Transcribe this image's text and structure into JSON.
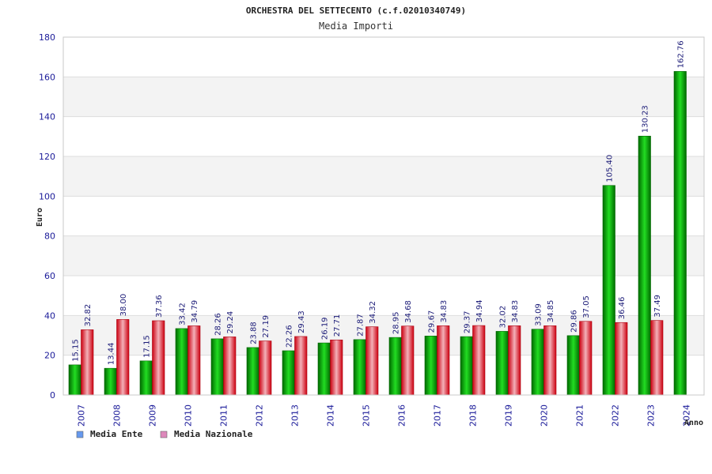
{
  "chart_data": {
    "type": "bar",
    "title": "ORCHESTRA DEL SETTECENTO (c.f.02010340749)",
    "subtitle": "Media Importi",
    "xlabel": "Anno",
    "ylabel": "Euro",
    "ylim": [
      0,
      180
    ],
    "yticks": [
      "0",
      "20",
      "40",
      "60",
      "80",
      "100",
      "120",
      "140",
      "160",
      "180"
    ],
    "grid": true,
    "legend_position": "bottom-left",
    "categories": [
      "2007",
      "2008",
      "2009",
      "2010",
      "2011",
      "2012",
      "2013",
      "2014",
      "2015",
      "2016",
      "2017",
      "2018",
      "2019",
      "2020",
      "2021",
      "2022",
      "2023",
      "2024"
    ],
    "series": [
      {
        "name": "Media Ente",
        "color": "#00a000",
        "legend_color": "#6699ee",
        "values": [
          15.15,
          13.44,
          17.15,
          33.42,
          28.26,
          23.88,
          22.26,
          26.19,
          27.87,
          28.95,
          29.67,
          29.37,
          32.02,
          33.09,
          29.86,
          105.4,
          130.23,
          162.76
        ],
        "labels": [
          "15.15",
          "13.44",
          "17.15",
          "33.42",
          "28.26",
          "23.88",
          "22.26",
          "26.19",
          "27.87",
          "28.95",
          "29.67",
          "29.37",
          "32.02",
          "33.09",
          "29.86",
          "105.40",
          "130.23",
          "162.76"
        ]
      },
      {
        "name": "Media Nazionale",
        "color": "#e00020",
        "legend_color": "#dd88bb",
        "values": [
          32.82,
          38.0,
          37.36,
          34.79,
          29.24,
          27.19,
          29.43,
          27.71,
          34.32,
          34.68,
          34.83,
          34.94,
          34.83,
          34.85,
          37.05,
          36.46,
          37.49,
          null
        ],
        "labels": [
          "32.82",
          "38.00",
          "37.36",
          "34.79",
          "29.24",
          "27.19",
          "29.43",
          "27.71",
          "34.32",
          "34.68",
          "34.83",
          "34.94",
          "34.83",
          "34.85",
          "37.05",
          "36.46",
          "37.49",
          null
        ]
      }
    ]
  }
}
